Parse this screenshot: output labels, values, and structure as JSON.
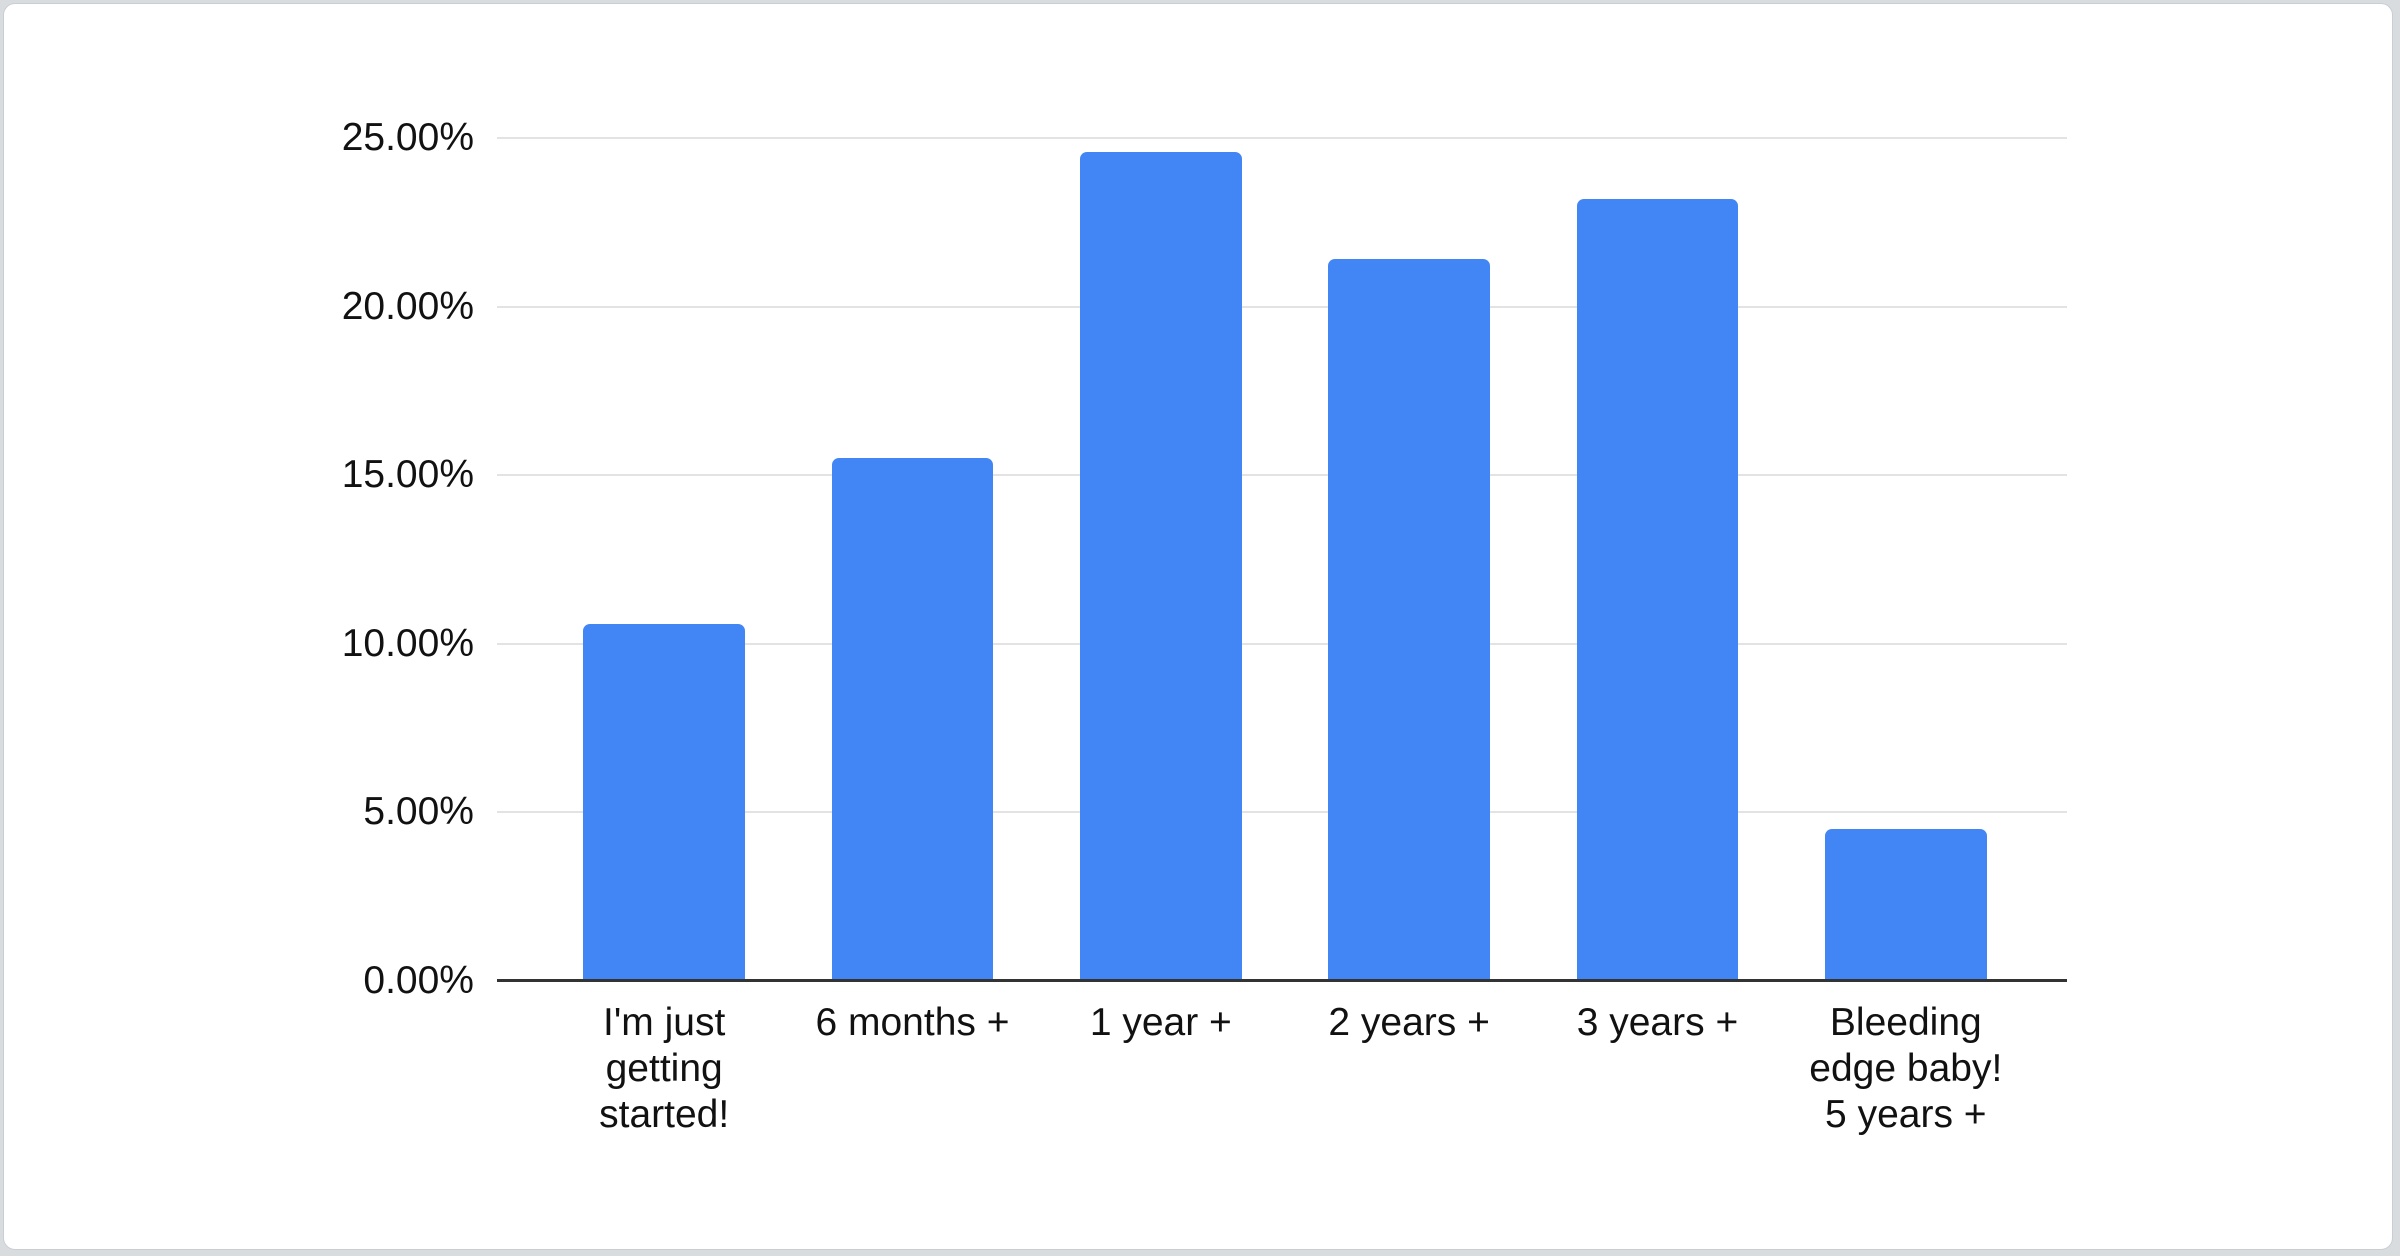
{
  "page": {
    "background_color": "#d9dcdf",
    "card_background": "#ffffff"
  },
  "chart_data": {
    "type": "bar",
    "title": "",
    "categories": [
      "I'm just getting started!",
      "6 months +",
      "1 year +",
      "2 years +",
      "3 years +",
      "Bleeding edge baby! 5 years +"
    ],
    "category_lines": [
      [
        "I'm just",
        "getting",
        "started!"
      ],
      [
        "6 months +"
      ],
      [
        "1 year +"
      ],
      [
        "2 years +"
      ],
      [
        "3 years +"
      ],
      [
        "Bleeding",
        "edge baby!",
        "5 years +"
      ]
    ],
    "values": [
      10.6,
      15.5,
      24.6,
      21.4,
      23.2,
      4.5
    ],
    "unit": "%",
    "xlabel": "",
    "ylabel": "",
    "ylim": [
      0,
      25
    ],
    "y_ticks": [
      {
        "value": 0,
        "label": "0.00%"
      },
      {
        "value": 5,
        "label": "5.00%"
      },
      {
        "value": 10,
        "label": "10.00%"
      },
      {
        "value": 15,
        "label": "15.00%"
      },
      {
        "value": 20,
        "label": "20.00%"
      },
      {
        "value": 25,
        "label": "25.00%"
      }
    ],
    "grid": true,
    "legend": "none",
    "bar_color": "#4285f4",
    "gridline_color": "#e3e3e3",
    "axis_line_color": "#333333",
    "label_color": "#111111"
  }
}
